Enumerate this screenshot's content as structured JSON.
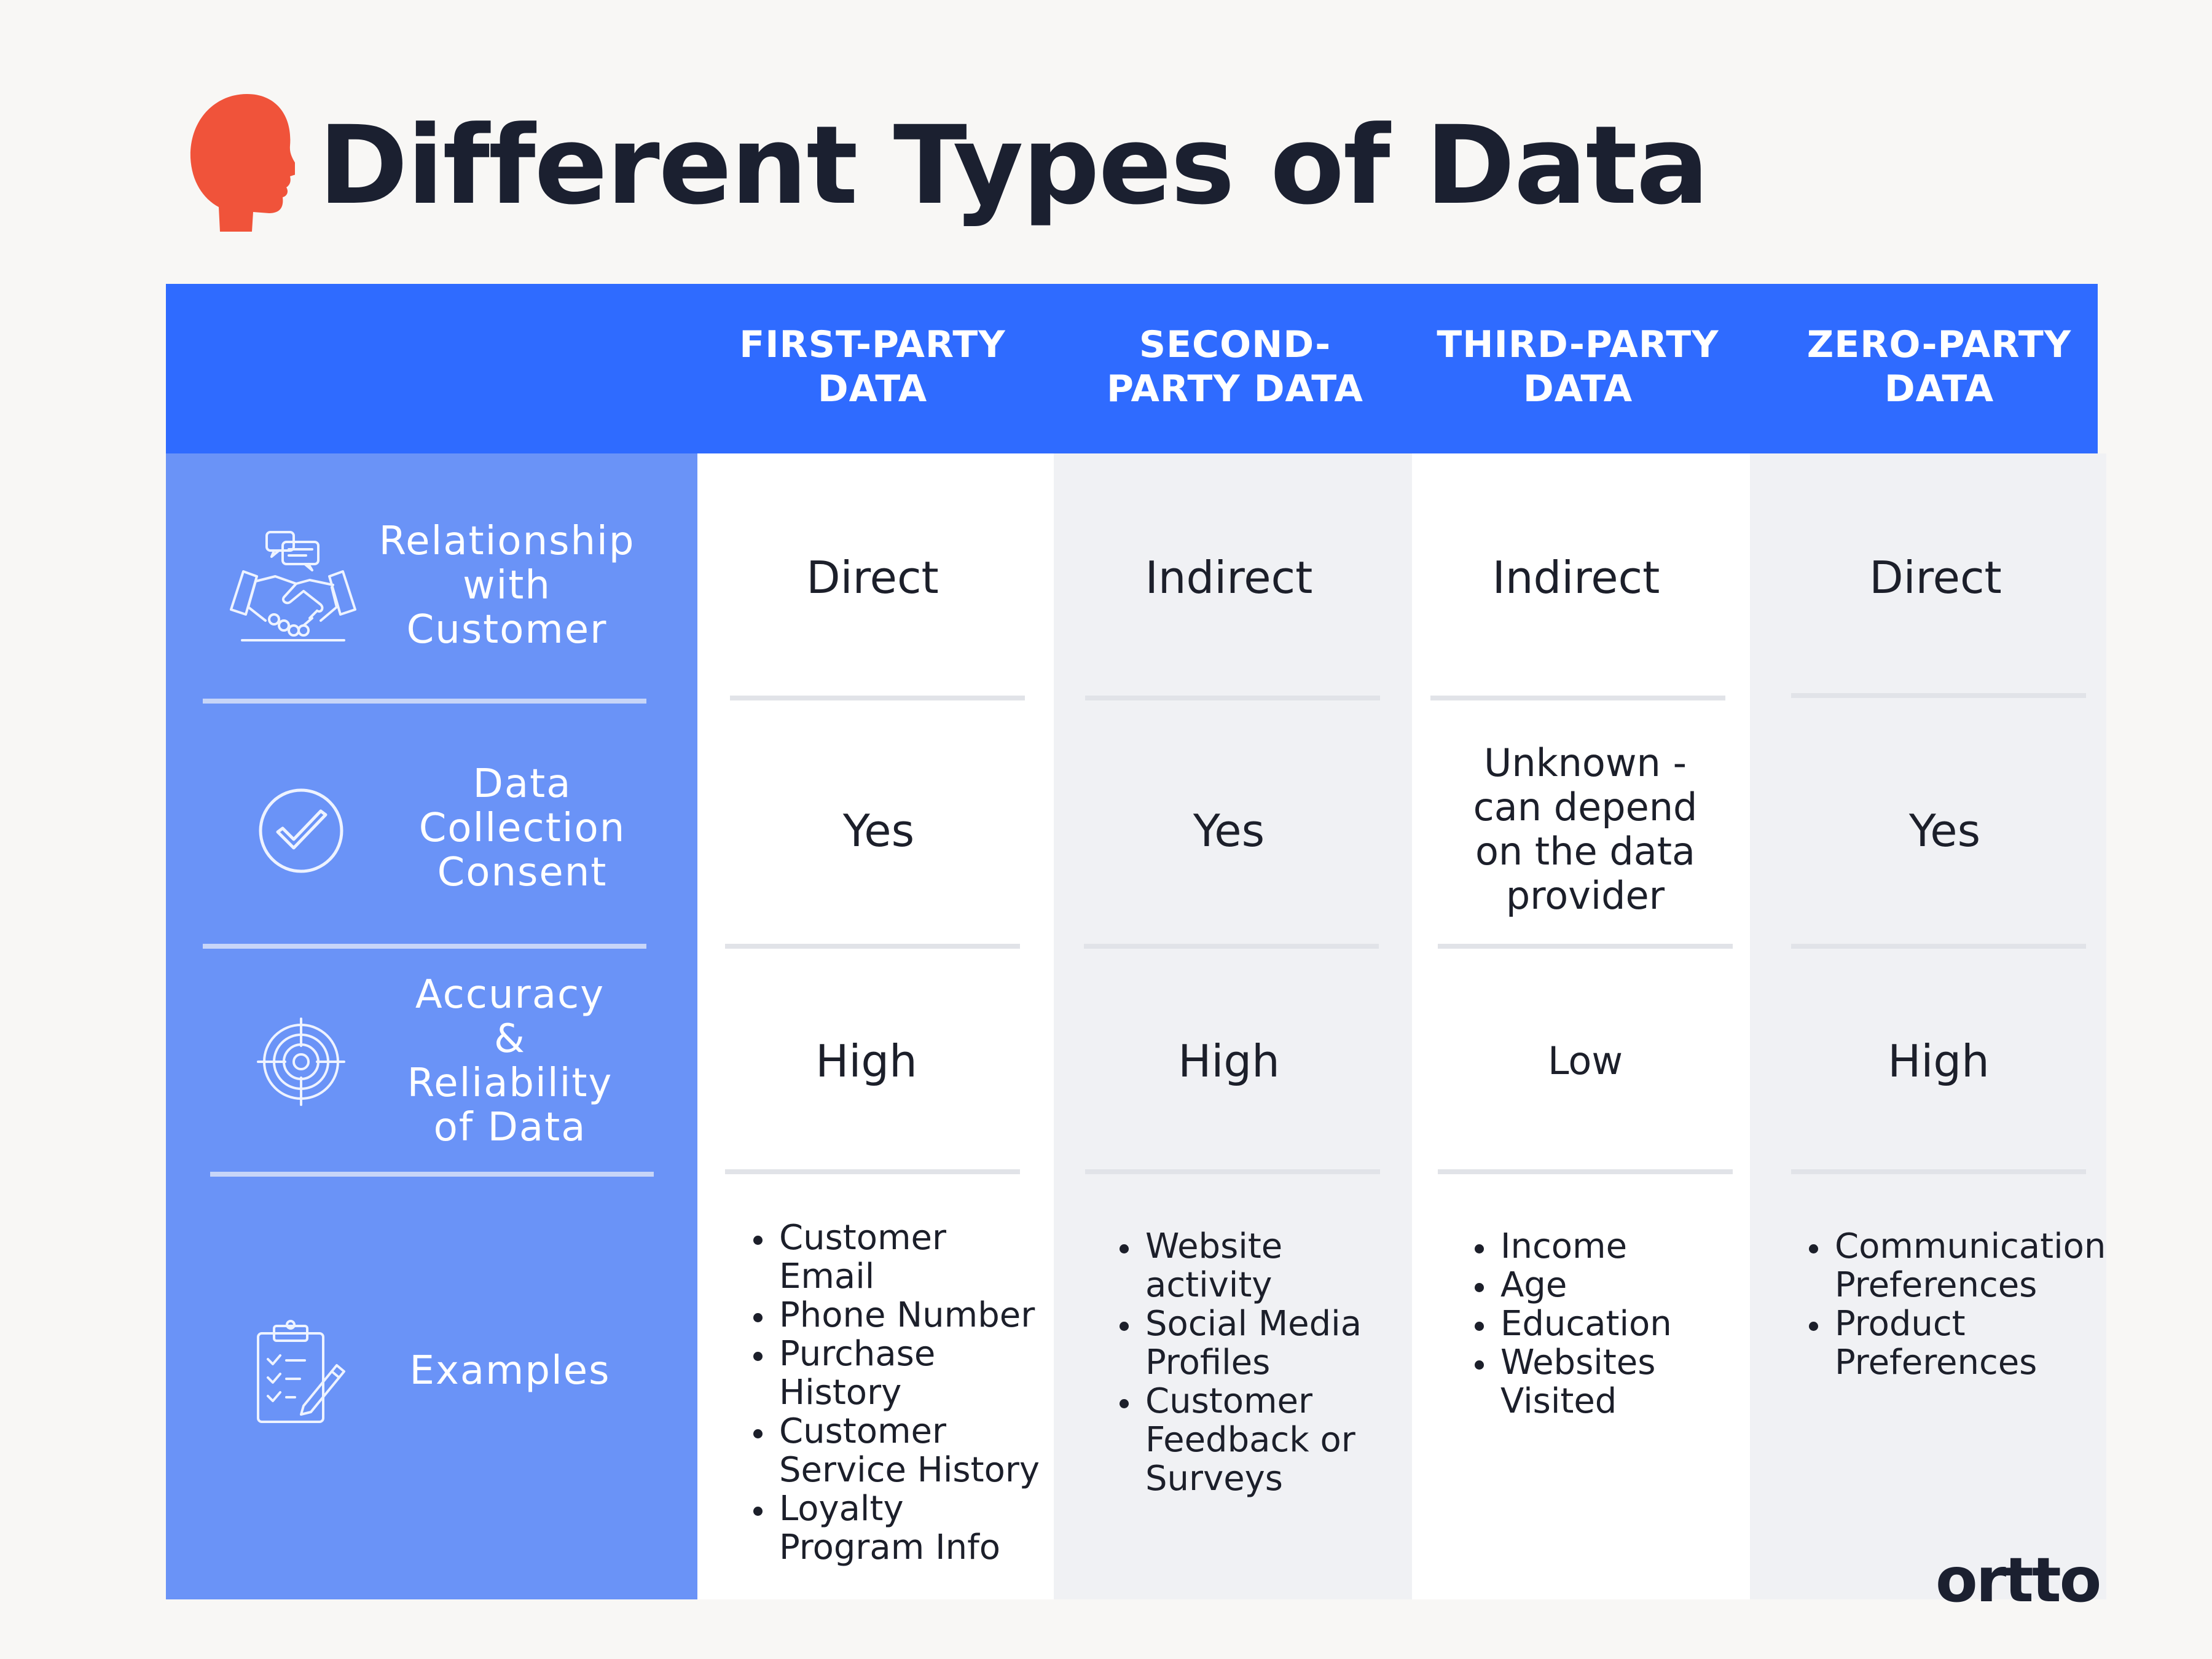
{
  "title": "Different Types of Data",
  "brand": "ortto",
  "colors": {
    "header_bg": "#2f6bff",
    "side_panel_bg": "#6a93f7",
    "accent_icon": "#f0533a",
    "title_text": "#1b2030"
  },
  "icons": {
    "title_icon": "head-silhouette-icon",
    "relationship_icon": "handshake-icon",
    "consent_icon": "checkmark-circle-icon",
    "accuracy_icon": "target-icon",
    "examples_icon": "clipboard-checklist-icon"
  },
  "columns": [
    {
      "line1": "FIRST-PARTY",
      "line2": "DATA"
    },
    {
      "line1": "SECOND-",
      "line2": "PARTY DATA"
    },
    {
      "line1": "THIRD-PARTY",
      "line2": "DATA"
    },
    {
      "line1": "ZERO-PARTY",
      "line2": "DATA"
    }
  ],
  "rows": {
    "relationship": {
      "label_lines": [
        "Relationship",
        "with",
        "Customer"
      ],
      "values": [
        "Direct",
        "Indirect",
        "Indirect",
        "Direct"
      ]
    },
    "consent": {
      "label_lines": [
        "Data",
        "Collection",
        "Consent"
      ],
      "values": [
        "Yes",
        "Yes",
        "",
        "Yes"
      ],
      "third_party_lines": [
        "Unknown -",
        "can depend",
        "on the data",
        "provider"
      ]
    },
    "accuracy": {
      "label_lines": [
        "Accuracy",
        "&",
        "Reliability",
        "of Data"
      ],
      "values": [
        "High",
        "High",
        "Low",
        "High"
      ]
    },
    "examples": {
      "label": "Examples",
      "first_party": [
        [
          "Customer",
          "Email"
        ],
        [
          "Phone Number"
        ],
        [
          "Purchase",
          "History"
        ],
        [
          "Customer",
          "Service History"
        ],
        [
          "Loyalty",
          "Program Info"
        ]
      ],
      "second_party": [
        [
          "Website",
          "activity"
        ],
        [
          "Social Media",
          "Profiles"
        ],
        [
          "Customer",
          "Feedback or",
          "Surveys"
        ]
      ],
      "third_party": [
        [
          "Income"
        ],
        [
          "Age"
        ],
        [
          "Education"
        ],
        [
          "Websites",
          "Visited"
        ]
      ],
      "zero_party": [
        [
          "Communication",
          "Preferences"
        ],
        [
          "Product",
          "Preferences"
        ]
      ]
    }
  }
}
